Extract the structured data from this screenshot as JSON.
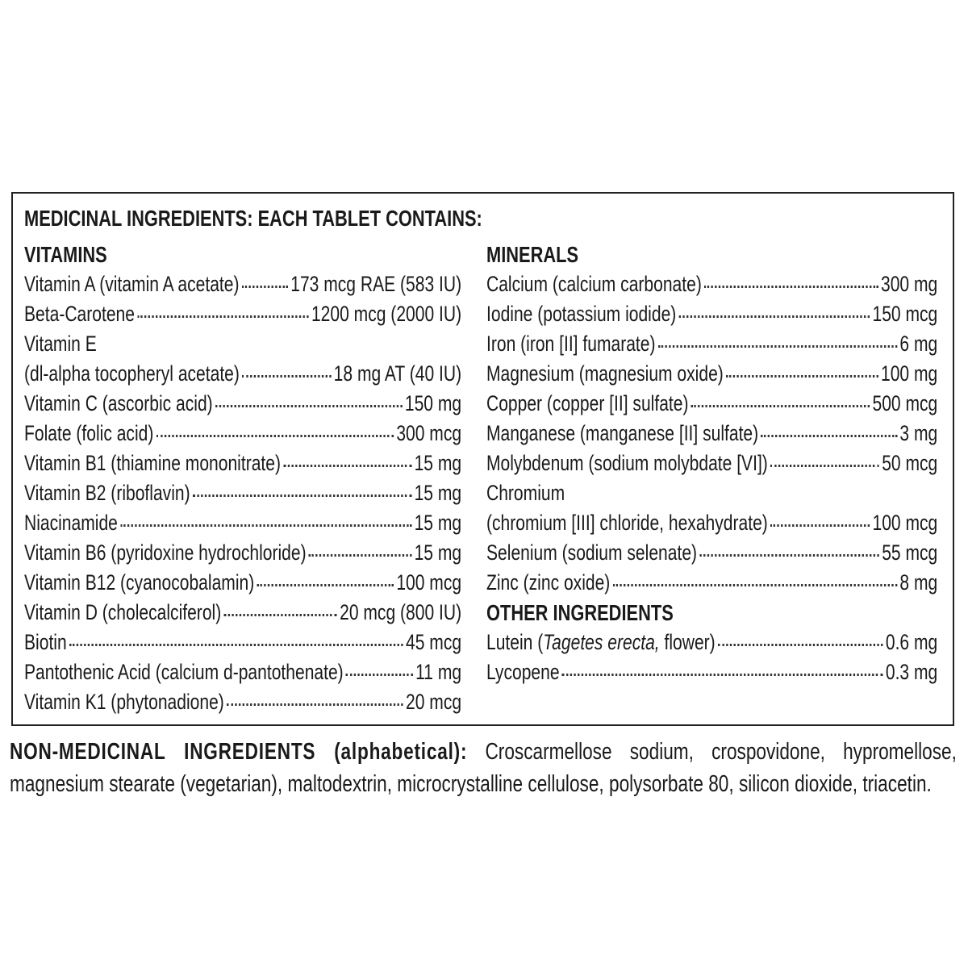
{
  "title": "MEDICINAL INGREDIENTS: EACH TABLET CONTAINS:",
  "vitamins": {
    "heading": "VITAMINS",
    "rows": [
      {
        "name": "Vitamin A (vitamin A acetate)",
        "amount": "173 mcg RAE (583 IU)"
      },
      {
        "name": "Beta-Carotene",
        "amount": "1200 mcg (2000 IU)"
      },
      {
        "name": "Vitamin E",
        "amount": null
      },
      {
        "name": "(dl-alpha tocopheryl acetate)",
        "amount": "18 mg AT (40 IU)"
      },
      {
        "name": "Vitamin C (ascorbic acid)",
        "amount": "150 mg"
      },
      {
        "name": "Folate (folic acid)",
        "amount": "300 mcg"
      },
      {
        "name": "Vitamin B1 (thiamine mononitrate)",
        "amount": "15 mg"
      },
      {
        "name": "Vitamin B2 (riboflavin)",
        "amount": "15 mg"
      },
      {
        "name": "Niacinamide",
        "amount": "15 mg"
      },
      {
        "name": "Vitamin B6 (pyridoxine hydrochloride)",
        "amount": "15 mg"
      },
      {
        "name": "Vitamin B12 (cyanocobalamin)",
        "amount": "100 mcg"
      },
      {
        "name": "Vitamin D (cholecalciferol)",
        "amount": "20 mcg (800 IU)"
      },
      {
        "name": "Biotin",
        "amount": "45 mcg"
      },
      {
        "name": "Pantothenic Acid (calcium d-pantothenate)",
        "amount": "11 mg"
      },
      {
        "name": "Vitamin K1 (phytonadione)",
        "amount": "20 mcg"
      }
    ]
  },
  "minerals": {
    "heading": "MINERALS",
    "rows": [
      {
        "name": "Calcium (calcium carbonate)",
        "amount": "300 mg"
      },
      {
        "name": "Iodine (potassium iodide)",
        "amount": "150 mcg"
      },
      {
        "name": "Iron (iron [II] fumarate)",
        "amount": "6 mg"
      },
      {
        "name": "Magnesium (magnesium oxide)",
        "amount": "100 mg"
      },
      {
        "name": "Copper (copper [II] sulfate)",
        "amount": "500 mcg"
      },
      {
        "name": "Manganese (manganese [II] sulfate)",
        "amount": "3 mg"
      },
      {
        "name": "Molybdenum (sodium molybdate [VI])",
        "amount": "50 mcg"
      },
      {
        "name": "Chromium",
        "amount": null
      },
      {
        "name": "(chromium [III] chloride, hexahydrate)",
        "amount": "100 mcg"
      },
      {
        "name": "Selenium (sodium selenate)",
        "amount": "55 mcg"
      },
      {
        "name": "Zinc (zinc oxide)",
        "amount": "8 mg"
      }
    ]
  },
  "other": {
    "heading": "OTHER INGREDIENTS",
    "lutein": {
      "prefix": "Lutein (",
      "italic": "Tagetes erecta,",
      "suffix": " flower)",
      "amount": "0.6 mg"
    },
    "lycopene": {
      "name": "Lycopene",
      "amount": "0.3 mg"
    }
  },
  "non_medicinal": {
    "heading": "NON-MEDICINAL INGREDIENTS (alphabetical):",
    "text": "Croscarmellose sodium, crospovidone, hypromellose, magnesium stearate (vegetarian), maltodextrin, microcrystalline cellulose, polysorbate 80, silicon dioxide, triacetin."
  }
}
